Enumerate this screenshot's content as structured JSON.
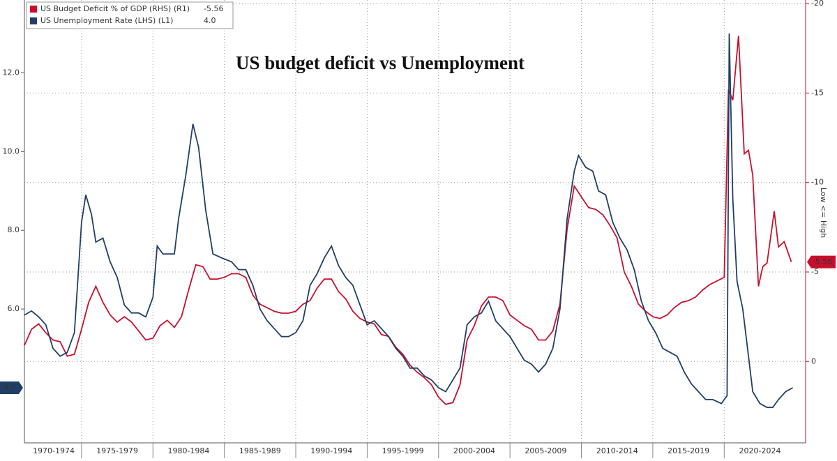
{
  "chart_data": {
    "type": "line",
    "title": "US budget deficit vs Unemployment",
    "axis_note": "Low <= High",
    "xlim": [
      1971,
      2025.7
    ],
    "xticks": [
      {
        "value": 1972.5,
        "label": "1970-1974"
      },
      {
        "value": 1977.5,
        "label": "1975-1979"
      },
      {
        "value": 1982.5,
        "label": "1980-1984"
      },
      {
        "value": 1987.5,
        "label": "1985-1989"
      },
      {
        "value": 1992.5,
        "label": "1990-1994"
      },
      {
        "value": 1997.5,
        "label": "1995-1999"
      },
      {
        "value": 2002.5,
        "label": "2000-2004"
      },
      {
        "value": 2007.5,
        "label": "2005-2009"
      },
      {
        "value": 2012.5,
        "label": "2010-2014"
      },
      {
        "value": 2017.5,
        "label": "2015-2019"
      },
      {
        "value": 2022.5,
        "label": "2020-2024"
      }
    ],
    "x_grid": [
      1975,
      1980,
      1985,
      1990,
      1995,
      2000,
      2005,
      2010,
      2015,
      2020
    ],
    "ylim": [
      2.6,
      13.85
    ],
    "yticks": [
      {
        "value": 6,
        "label": "6.0"
      },
      {
        "value": 8,
        "label": "8.0"
      },
      {
        "value": 10,
        "label": "10.0"
      },
      {
        "value": 12,
        "label": "12.0"
      }
    ],
    "y2lim": [
      -20.2,
      4.55
    ],
    "y2_inverted": true,
    "y2ticks": [
      -20,
      -15,
      -10,
      -5,
      0
    ],
    "grid": true,
    "series": [
      {
        "name": "US Budget Deficit % of GDP (RHS) (R1)",
        "color": "#c8102e",
        "axis": "y2",
        "last": -5.56,
        "x": [
          1971.0,
          1971.5,
          1972.0,
          1972.5,
          1973.0,
          1973.5,
          1974.0,
          1974.5,
          1975.0,
          1975.5,
          1976.0,
          1976.5,
          1977.0,
          1977.5,
          1978.0,
          1978.5,
          1979.0,
          1979.5,
          1980.0,
          1980.5,
          1981.0,
          1981.5,
          1982.0,
          1982.5,
          1983.0,
          1983.5,
          1984.0,
          1984.5,
          1985.0,
          1985.5,
          1986.0,
          1986.5,
          1987.0,
          1987.5,
          1988.0,
          1988.5,
          1989.0,
          1989.5,
          1990.0,
          1990.5,
          1991.0,
          1991.5,
          1992.0,
          1992.5,
          1993.0,
          1993.5,
          1994.0,
          1994.5,
          1995.0,
          1995.5,
          1996.0,
          1996.5,
          1997.0,
          1997.5,
          1998.0,
          1998.5,
          1999.0,
          1999.5,
          2000.0,
          2000.5,
          2001.0,
          2001.5,
          2002.0,
          2002.5,
          2003.0,
          2003.5,
          2004.0,
          2004.5,
          2005.0,
          2005.5,
          2006.0,
          2006.5,
          2007.0,
          2007.5,
          2008.0,
          2008.5,
          2009.0,
          2009.5,
          2010.0,
          2010.5,
          2011.0,
          2011.5,
          2012.0,
          2012.5,
          2013.0,
          2013.5,
          2014.0,
          2014.5,
          2015.0,
          2015.5,
          2016.0,
          2016.5,
          2017.0,
          2017.5,
          2018.0,
          2018.5,
          2019.0,
          2019.5,
          2020.0,
          2020.3,
          2020.6,
          2021.0,
          2021.4,
          2021.7,
          2022.0,
          2022.4,
          2022.7,
          2023.0,
          2023.5,
          2023.8,
          2024.2,
          2024.7
        ],
        "values": [
          -0.9,
          -1.8,
          -2.1,
          -1.6,
          -1.2,
          -1.1,
          -0.3,
          -0.4,
          -1.8,
          -3.3,
          -4.2,
          -3.3,
          -2.6,
          -2.2,
          -2.5,
          -2.2,
          -1.7,
          -1.2,
          -1.3,
          -2.0,
          -2.3,
          -1.9,
          -2.5,
          -4.0,
          -5.4,
          -5.3,
          -4.6,
          -4.6,
          -4.7,
          -4.9,
          -4.9,
          -4.7,
          -3.7,
          -3.2,
          -3.0,
          -2.8,
          -2.7,
          -2.7,
          -2.8,
          -3.2,
          -3.4,
          -4.1,
          -4.6,
          -4.6,
          -3.9,
          -3.5,
          -2.8,
          -2.4,
          -2.2,
          -2.1,
          -1.5,
          -1.4,
          -0.8,
          -0.4,
          0.2,
          0.6,
          0.9,
          1.3,
          2.0,
          2.4,
          2.3,
          1.3,
          -1.2,
          -2.0,
          -3.1,
          -3.6,
          -3.6,
          -3.4,
          -2.6,
          -2.3,
          -2.0,
          -1.8,
          -1.2,
          -1.2,
          -1.7,
          -3.2,
          -7.4,
          -9.8,
          -9.2,
          -8.6,
          -8.5,
          -8.2,
          -7.6,
          -6.9,
          -5.0,
          -4.2,
          -3.2,
          -2.8,
          -2.5,
          -2.4,
          -2.6,
          -3.0,
          -3.3,
          -3.4,
          -3.6,
          -4.0,
          -4.3,
          -4.5,
          -4.7,
          -15.2,
          -14.6,
          -18.2,
          -11.6,
          -11.8,
          -10.4,
          -4.2,
          -5.3,
          -5.5,
          -8.4,
          -6.4,
          -6.7,
          -5.56
        ]
      },
      {
        "name": "US Unemployment Rate (LHS) (L1)",
        "color": "#1f3f66",
        "axis": "y",
        "last": {
          "value": 4.0,
          "label": "4.0"
        },
        "x": [
          1971.0,
          1971.5,
          1972.0,
          1972.5,
          1973.0,
          1973.5,
          1974.0,
          1974.5,
          1975.0,
          1975.3,
          1975.7,
          1976.0,
          1976.5,
          1977.0,
          1977.5,
          1978.0,
          1978.5,
          1979.0,
          1979.5,
          1980.0,
          1980.3,
          1980.7,
          1981.0,
          1981.5,
          1981.8,
          1982.3,
          1982.8,
          1983.2,
          1983.7,
          1984.2,
          1984.8,
          1985.5,
          1986.0,
          1986.5,
          1987.0,
          1987.5,
          1988.0,
          1988.5,
          1989.0,
          1989.5,
          1990.0,
          1990.5,
          1991.0,
          1991.5,
          1992.0,
          1992.5,
          1993.0,
          1993.5,
          1994.0,
          1994.5,
          1995.0,
          1995.5,
          1996.0,
          1996.5,
          1997.0,
          1997.5,
          1998.0,
          1998.5,
          1999.0,
          1999.5,
          2000.0,
          2000.5,
          2001.0,
          2001.5,
          2002.0,
          2002.5,
          2003.0,
          2003.5,
          2004.0,
          2004.5,
          2005.0,
          2005.5,
          2006.0,
          2006.5,
          2007.0,
          2007.5,
          2008.0,
          2008.5,
          2009.0,
          2009.5,
          2009.8,
          2010.3,
          2010.8,
          2011.2,
          2011.7,
          2012.2,
          2012.7,
          2013.2,
          2013.7,
          2014.2,
          2014.7,
          2015.2,
          2015.7,
          2016.2,
          2016.7,
          2017.2,
          2017.7,
          2018.2,
          2018.7,
          2019.2,
          2019.8,
          2020.2,
          2020.35,
          2020.6,
          2020.9,
          2021.3,
          2021.7,
          2022.0,
          2022.5,
          2023.0,
          2023.4,
          2023.8,
          2024.3,
          2024.8
        ],
        "values": [
          5.85,
          5.95,
          5.8,
          5.6,
          5.0,
          4.8,
          4.9,
          5.4,
          8.2,
          8.9,
          8.4,
          7.7,
          7.8,
          7.2,
          6.8,
          6.1,
          5.9,
          5.9,
          5.8,
          6.3,
          7.6,
          7.4,
          7.4,
          7.4,
          8.3,
          9.4,
          10.7,
          10.1,
          8.5,
          7.4,
          7.3,
          7.2,
          7.0,
          7.0,
          6.6,
          6.0,
          5.7,
          5.5,
          5.3,
          5.3,
          5.4,
          5.7,
          6.6,
          6.9,
          7.3,
          7.6,
          7.1,
          6.8,
          6.6,
          6.1,
          5.6,
          5.7,
          5.5,
          5.3,
          5.0,
          4.8,
          4.5,
          4.5,
          4.3,
          4.2,
          4.0,
          3.9,
          4.2,
          4.5,
          5.6,
          5.8,
          5.9,
          6.2,
          5.7,
          5.5,
          5.3,
          5.0,
          4.7,
          4.6,
          4.4,
          4.6,
          5.0,
          6.0,
          8.3,
          9.5,
          9.9,
          9.6,
          9.5,
          9.0,
          8.9,
          8.2,
          7.8,
          7.5,
          7.0,
          6.2,
          5.7,
          5.4,
          5.0,
          4.9,
          4.8,
          4.4,
          4.1,
          3.9,
          3.7,
          3.7,
          3.6,
          3.8,
          13.0,
          8.8,
          6.7,
          6.0,
          4.8,
          3.9,
          3.6,
          3.5,
          3.5,
          3.7,
          3.9,
          4.0
        ]
      }
    ]
  }
}
